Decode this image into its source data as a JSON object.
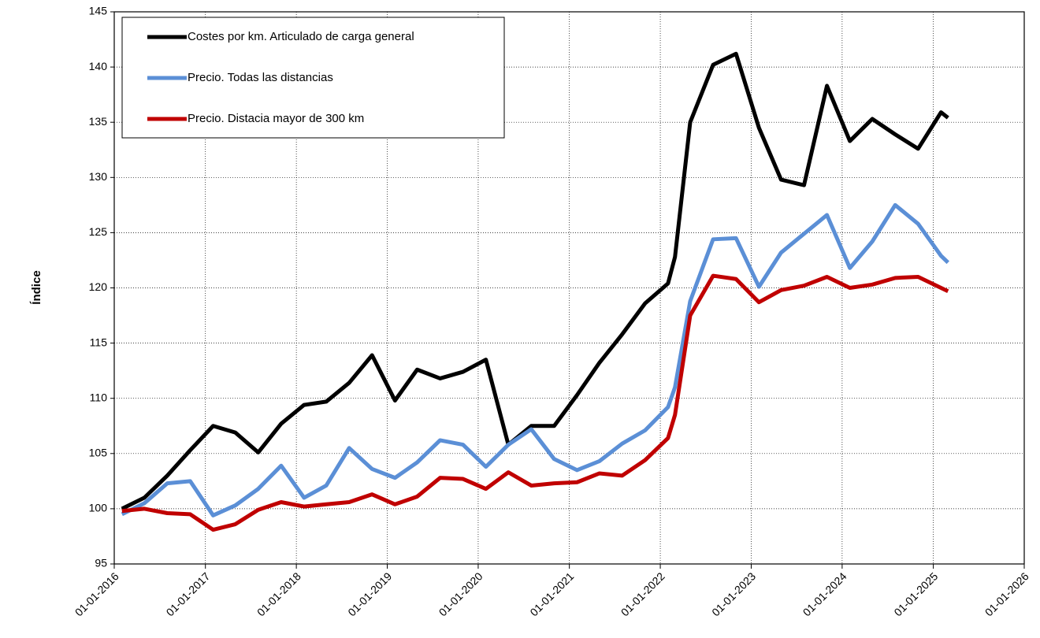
{
  "chart_data": {
    "type": "line",
    "y_label": "Índice",
    "x": [
      "01-02-2016",
      "01-05-2016",
      "01-08-2016",
      "01-11-2016",
      "01-02-2017",
      "01-05-2017",
      "01-08-2017",
      "01-11-2017",
      "01-02-2018",
      "01-05-2018",
      "01-08-2018",
      "01-11-2018",
      "01-02-2019",
      "01-05-2019",
      "01-08-2019",
      "01-11-2019",
      "01-02-2020",
      "01-05-2020",
      "01-08-2020",
      "01-11-2020",
      "01-02-2021",
      "01-05-2021",
      "01-08-2021",
      "01-11-2021",
      "01-02-2022",
      "01-03-2022",
      "01-05-2022",
      "01-08-2022",
      "01-11-2022",
      "01-02-2023",
      "01-05-2023",
      "01-08-2023",
      "01-11-2023",
      "01-02-2024",
      "01-05-2024",
      "01-08-2024",
      "01-11-2024",
      "01-02-2025",
      "01-03-2025"
    ],
    "series": [
      {
        "name": "Costes por km. Articulado de carga general",
        "color": "#000000",
        "values": [
          100,
          101,
          103,
          105.3,
          107.5,
          106.9,
          105.1,
          107.7,
          109.4,
          109.7,
          111.4,
          113.9,
          109.8,
          112.6,
          111.8,
          112.4,
          113.5,
          105.8,
          107.5,
          107.5,
          110.3,
          113.2,
          115.8,
          118.6,
          120.4,
          122.8,
          135,
          140.2,
          141.2,
          134.5,
          129.8,
          129.3,
          138.3,
          133.3,
          135.3,
          133.9,
          132.6,
          135.9,
          135.4
        ]
      },
      {
        "name": "Precio. Todas las distancias",
        "color": "#5b8fd6",
        "values": [
          99.5,
          100.5,
          102.3,
          102.5,
          99.4,
          100.3,
          101.8,
          103.9,
          101,
          102.1,
          105.5,
          103.6,
          102.8,
          104.2,
          106.2,
          105.8,
          103.8,
          105.8,
          107.2,
          104.5,
          103.5,
          104.3,
          105.9,
          107.1,
          109.2,
          111,
          118.8,
          124.4,
          124.5,
          120.1,
          123.2,
          124.9,
          126.6,
          121.8,
          124.2,
          127.5,
          125.8,
          122.9,
          122.3
        ]
      },
      {
        "name": "Precio. Distacia mayor de 300 km",
        "color": "#c00000",
        "values": [
          99.8,
          100,
          99.6,
          99.5,
          98.1,
          98.6,
          99.9,
          100.6,
          100.2,
          100.4,
          100.6,
          101.3,
          100.4,
          101.1,
          102.8,
          102.7,
          101.8,
          103.3,
          102.1,
          102.3,
          102.4,
          103.2,
          103,
          104.4,
          106.4,
          108.5,
          117.5,
          121.1,
          120.8,
          118.7,
          119.8,
          120.2,
          121,
          120,
          120.3,
          120.9,
          121,
          120,
          119.7
        ]
      }
    ],
    "xlim": [
      "01-01-2016",
      "01-01-2026"
    ],
    "xticks": [
      "01-01-2016",
      "01-01-2017",
      "01-01-2018",
      "01-01-2019",
      "01-01-2020",
      "01-01-2021",
      "01-01-2022",
      "01-01-2023",
      "01-01-2024",
      "01-01-2025",
      "01-01-2026"
    ],
    "ylim": [
      95,
      145
    ],
    "yticks": [
      95,
      100,
      105,
      110,
      115,
      120,
      125,
      130,
      135,
      140,
      145
    ],
    "grid": true,
    "legend": "upper left"
  }
}
